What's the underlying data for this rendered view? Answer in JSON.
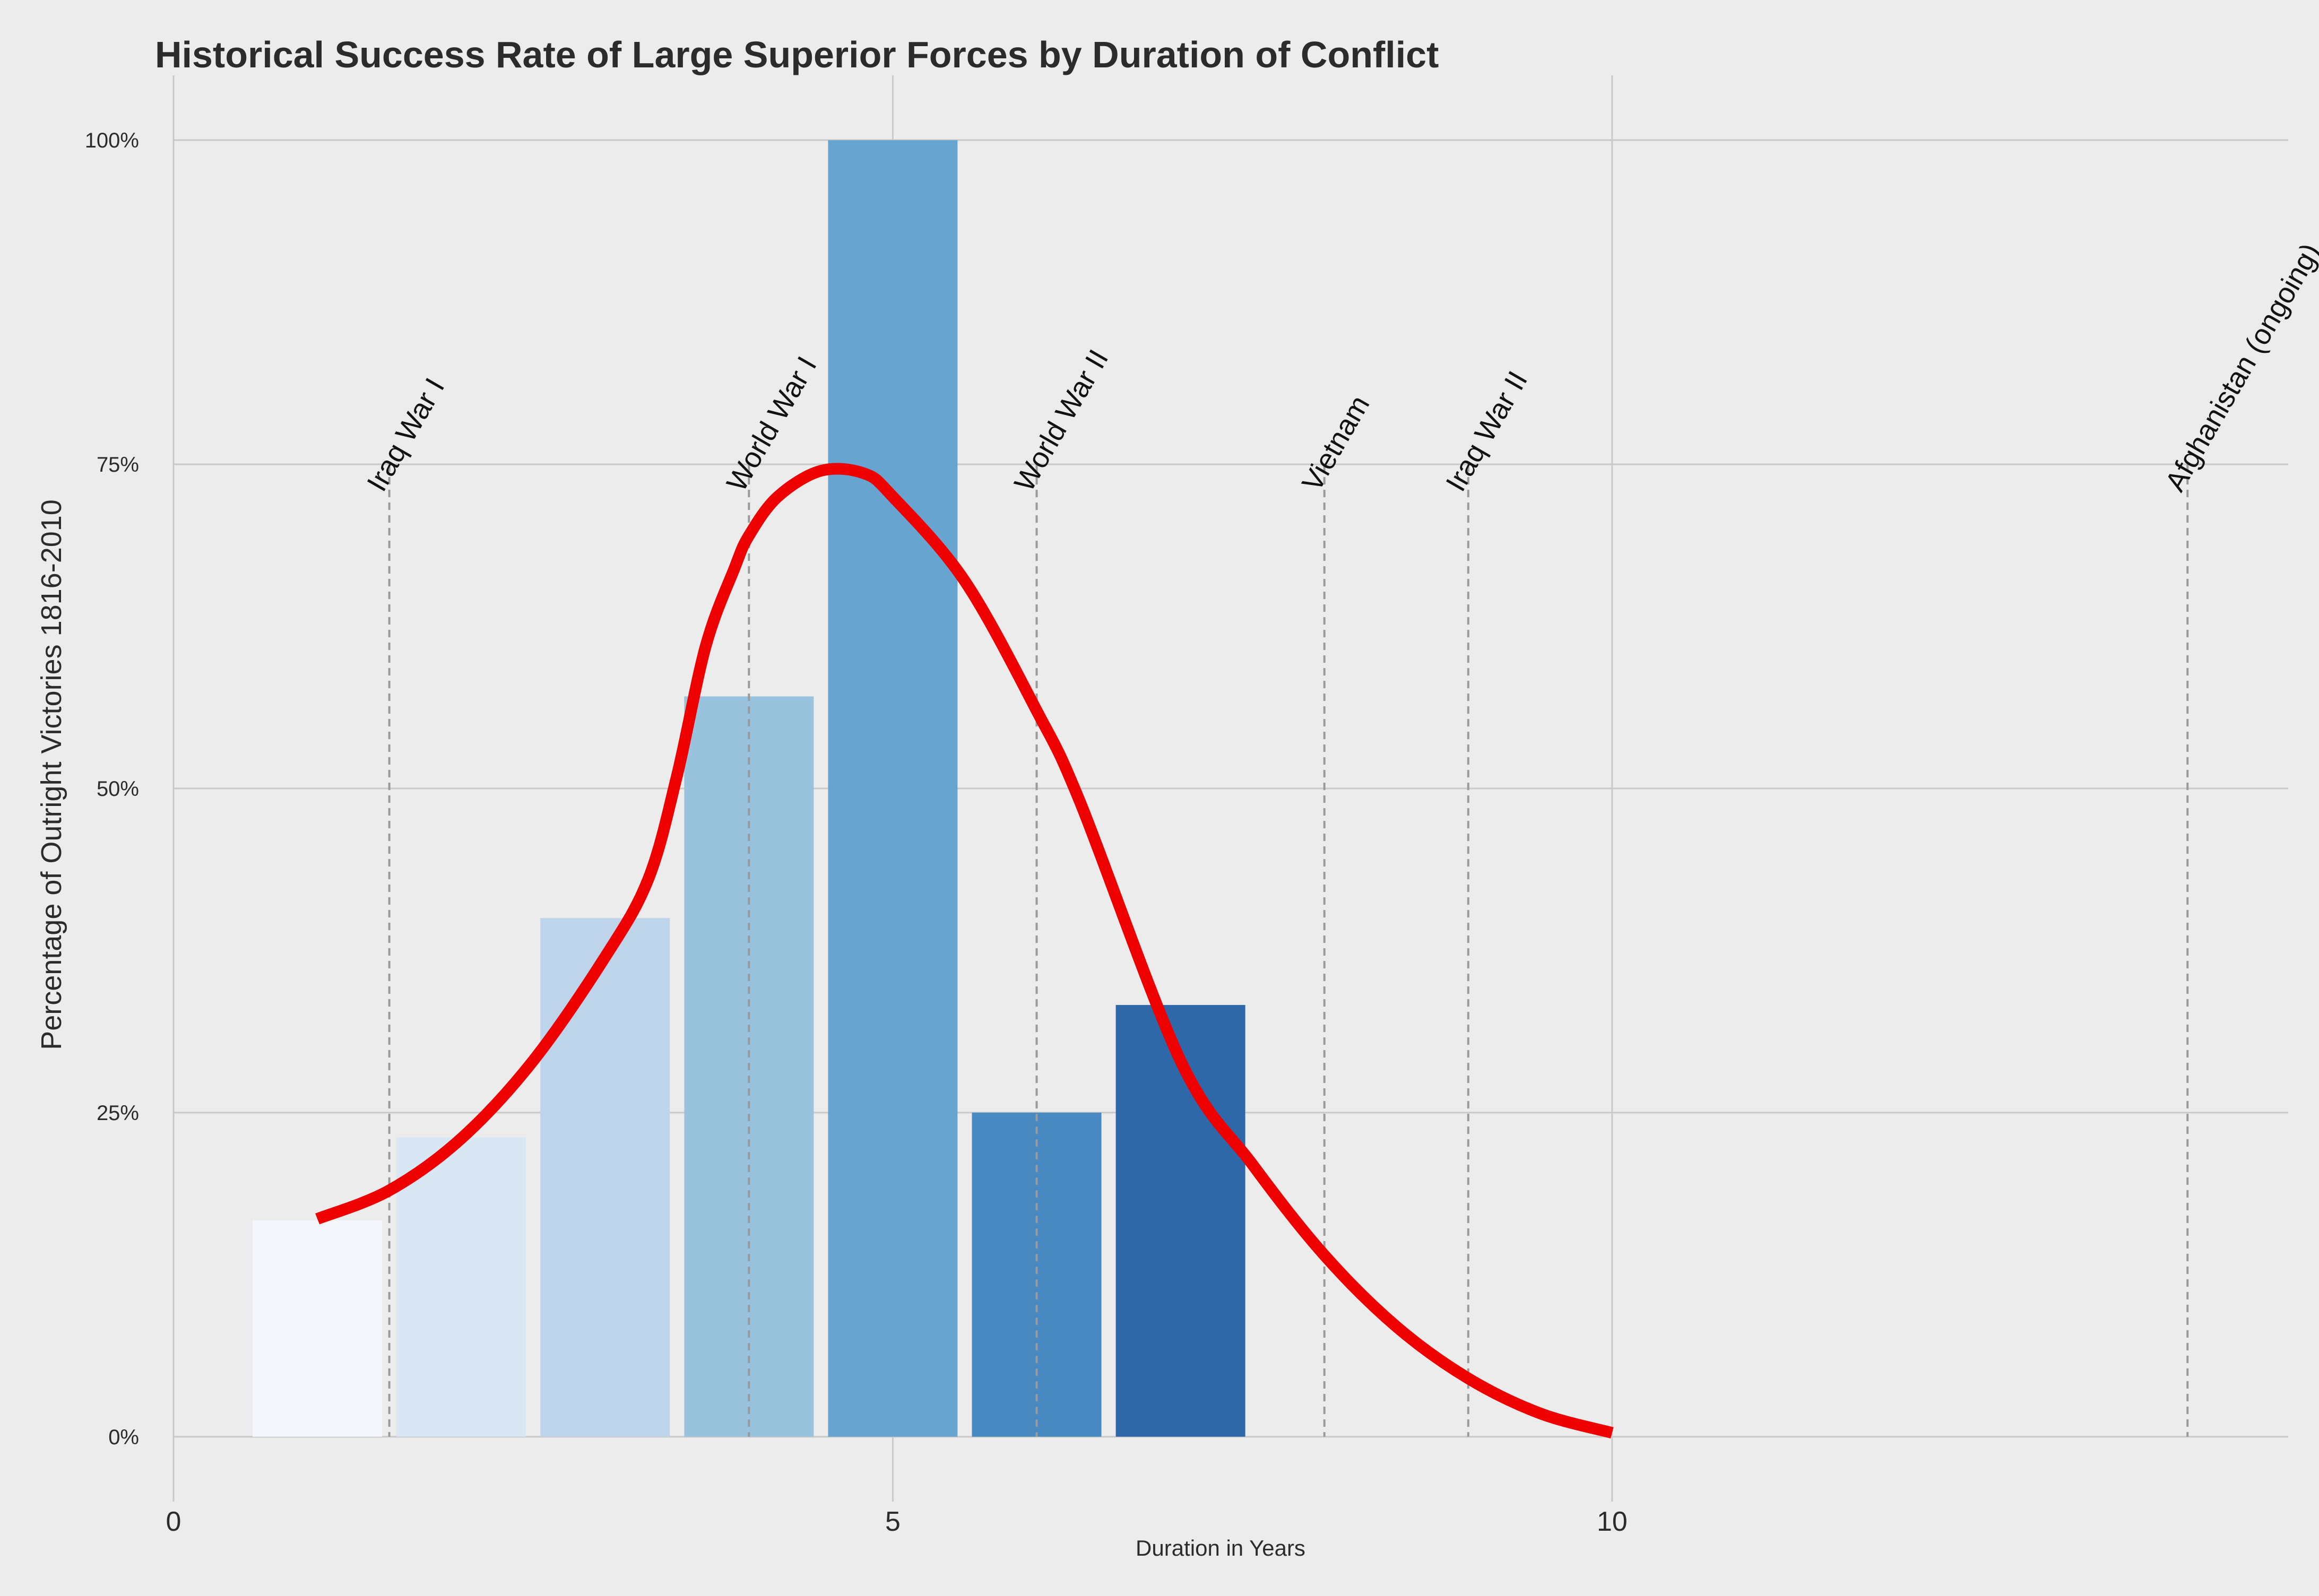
{
  "chart_data": {
    "type": "bar",
    "title": "Historical Success Rate of Large Superior Forces by Duration of Conflict",
    "xlabel": "Duration in Years",
    "ylabel": "Percentage of Outright Victories 1816-2010",
    "xlim": [
      0,
      14.7
    ],
    "ylim": [
      -0.05,
      1.05
    ],
    "x_ticks": [
      {
        "value": 0,
        "label": "0"
      },
      {
        "value": 5,
        "label": "5"
      },
      {
        "value": 10,
        "label": "10"
      }
    ],
    "y_ticks": [
      {
        "value": 0,
        "label": "0%"
      },
      {
        "value": 0.25,
        "label": "25%"
      },
      {
        "value": 0.5,
        "label": "50%"
      },
      {
        "value": 0.75,
        "label": "75%"
      },
      {
        "value": 1.0,
        "label": "100%"
      }
    ],
    "grid": true,
    "bars": [
      {
        "x": 1,
        "value": 0.167,
        "color": "#f3f6fa"
      },
      {
        "x": 2,
        "value": 0.231,
        "color": "#d9e6f3"
      },
      {
        "x": 3,
        "value": 0.4,
        "color": "#bed4ea"
      },
      {
        "x": 4,
        "value": 0.571,
        "color": "#99c3dc"
      },
      {
        "x": 5,
        "value": 1.0,
        "color": "#67a5d0"
      },
      {
        "x": 6,
        "value": 0.25,
        "color": "#4789c0"
      },
      {
        "x": 7,
        "value": 0.333,
        "color": "#2f68a9"
      }
    ],
    "bar_width": 0.9,
    "fit_curve": {
      "color": "#ee0000",
      "x": [
        1,
        1.5,
        2,
        2.5,
        3,
        3.3,
        3.5,
        3.7,
        3.9,
        4,
        4.2,
        4.5,
        4.8,
        5,
        5.5,
        6,
        6.3,
        7,
        7.5,
        8,
        8.5,
        9,
        9.5,
        10
      ],
      "y": [
        0.168,
        0.19,
        0.23,
        0.29,
        0.37,
        0.43,
        0.51,
        0.61,
        0.67,
        0.695,
        0.725,
        0.745,
        0.743,
        0.725,
        0.66,
        0.56,
        0.49,
        0.29,
        0.21,
        0.14,
        0.085,
        0.045,
        0.018,
        0.003
      ]
    },
    "annotations": [
      {
        "label": "Iraq War I",
        "x": 1.5
      },
      {
        "label": "World War I",
        "x": 4
      },
      {
        "label": "World War II",
        "x": 6
      },
      {
        "label": "Vietnam",
        "x": 8
      },
      {
        "label": "Iraq War II",
        "x": 9
      },
      {
        "label": "Afghanistan (ongoing)",
        "x": 14
      }
    ],
    "annotation_y": 0.75,
    "colors": {
      "background": "#ececec",
      "grid": "#c9c9c9",
      "annotation_line": "#9a9a9a"
    }
  }
}
